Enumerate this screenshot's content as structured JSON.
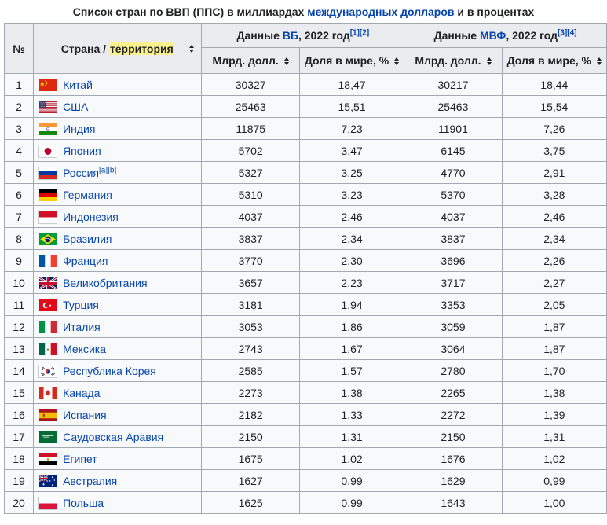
{
  "title": {
    "prefix": "Список стран по ВВП (ППС) в миллиардах ",
    "link": "международных долларов",
    "suffix": " и в процентах"
  },
  "colors": {
    "link": "#0645ad",
    "header_bg": "#eaecf0",
    "border": "#a2a9b1",
    "highlight": "#fbf18f"
  },
  "table": {
    "header": {
      "number_label": "№",
      "country_prefix": "Страна / ",
      "country_highlight": "территория",
      "wb": {
        "prefix": "Данные ",
        "link": "ВБ",
        "suffix": ", 2022 год",
        "refs": [
          "[1]",
          "[2]"
        ]
      },
      "imf": {
        "prefix": "Данные ",
        "link": "МВФ",
        "suffix": ", 2022 год",
        "refs": [
          "[3]",
          "[4]"
        ]
      },
      "sub": {
        "wb_value": "Млрд. долл.",
        "wb_share": "Доля в мире, %",
        "imf_value": "Млрд. долл.",
        "imf_share": "Доля в мире, %"
      }
    },
    "rows": [
      {
        "rank": "1",
        "country": "Китай",
        "flag": "china",
        "refs": [],
        "wb_value": "30327",
        "wb_share": "18,47",
        "imf_value": "30217",
        "imf_share": "18,44"
      },
      {
        "rank": "2",
        "country": "США",
        "flag": "usa",
        "refs": [],
        "wb_value": "25463",
        "wb_share": "15,51",
        "imf_value": "25463",
        "imf_share": "15,54"
      },
      {
        "rank": "3",
        "country": "Индия",
        "flag": "india",
        "refs": [],
        "wb_value": "11875",
        "wb_share": "7,23",
        "imf_value": "11901",
        "imf_share": "7,26"
      },
      {
        "rank": "4",
        "country": "Япония",
        "flag": "japan",
        "refs": [],
        "wb_value": "5702",
        "wb_share": "3,47",
        "imf_value": "6145",
        "imf_share": "3,75"
      },
      {
        "rank": "5",
        "country": "Россия",
        "flag": "russia",
        "refs": [
          "[a]",
          "[b]"
        ],
        "wb_value": "5327",
        "wb_share": "3,25",
        "imf_value": "4770",
        "imf_share": "2,91"
      },
      {
        "rank": "6",
        "country": "Германия",
        "flag": "germany",
        "refs": [],
        "wb_value": "5310",
        "wb_share": "3,23",
        "imf_value": "5370",
        "imf_share": "3,28"
      },
      {
        "rank": "7",
        "country": "Индонезия",
        "flag": "indonesia",
        "refs": [],
        "wb_value": "4037",
        "wb_share": "2,46",
        "imf_value": "4037",
        "imf_share": "2,46"
      },
      {
        "rank": "8",
        "country": "Бразилия",
        "flag": "brazil",
        "refs": [],
        "wb_value": "3837",
        "wb_share": "2,34",
        "imf_value": "3837",
        "imf_share": "2,34"
      },
      {
        "rank": "9",
        "country": "Франция",
        "flag": "france",
        "refs": [],
        "wb_value": "3770",
        "wb_share": "2,30",
        "imf_value": "3696",
        "imf_share": "2,26"
      },
      {
        "rank": "10",
        "country": "Великобритания",
        "flag": "uk",
        "refs": [],
        "wb_value": "3657",
        "wb_share": "2,23",
        "imf_value": "3717",
        "imf_share": "2,27"
      },
      {
        "rank": "11",
        "country": "Турция",
        "flag": "turkey",
        "refs": [],
        "wb_value": "3181",
        "wb_share": "1,94",
        "imf_value": "3353",
        "imf_share": "2,05"
      },
      {
        "rank": "12",
        "country": "Италия",
        "flag": "italy",
        "refs": [],
        "wb_value": "3053",
        "wb_share": "1,86",
        "imf_value": "3059",
        "imf_share": "1,87"
      },
      {
        "rank": "13",
        "country": "Мексика",
        "flag": "mexico",
        "refs": [],
        "wb_value": "2743",
        "wb_share": "1,67",
        "imf_value": "3064",
        "imf_share": "1,87"
      },
      {
        "rank": "14",
        "country": "Республика Корея",
        "flag": "south-korea",
        "refs": [],
        "wb_value": "2585",
        "wb_share": "1,57",
        "imf_value": "2780",
        "imf_share": "1,70"
      },
      {
        "rank": "15",
        "country": "Канада",
        "flag": "canada",
        "refs": [],
        "wb_value": "2273",
        "wb_share": "1,38",
        "imf_value": "2265",
        "imf_share": "1,38"
      },
      {
        "rank": "16",
        "country": "Испания",
        "flag": "spain",
        "refs": [],
        "wb_value": "2182",
        "wb_share": "1,33",
        "imf_value": "2272",
        "imf_share": "1,39"
      },
      {
        "rank": "17",
        "country": "Саудовская Аравия",
        "flag": "saudi-arabia",
        "refs": [],
        "wb_value": "2150",
        "wb_share": "1,31",
        "imf_value": "2150",
        "imf_share": "1,31"
      },
      {
        "rank": "18",
        "country": "Египет",
        "flag": "egypt",
        "refs": [],
        "wb_value": "1675",
        "wb_share": "1,02",
        "imf_value": "1676",
        "imf_share": "1,02"
      },
      {
        "rank": "19",
        "country": "Австралия",
        "flag": "australia",
        "refs": [],
        "wb_value": "1627",
        "wb_share": "0,99",
        "imf_value": "1629",
        "imf_share": "0,99"
      },
      {
        "rank": "20",
        "country": "Польша",
        "flag": "poland",
        "refs": [],
        "wb_value": "1625",
        "wb_share": "0,99",
        "imf_value": "1643",
        "imf_share": "1,00"
      }
    ]
  }
}
